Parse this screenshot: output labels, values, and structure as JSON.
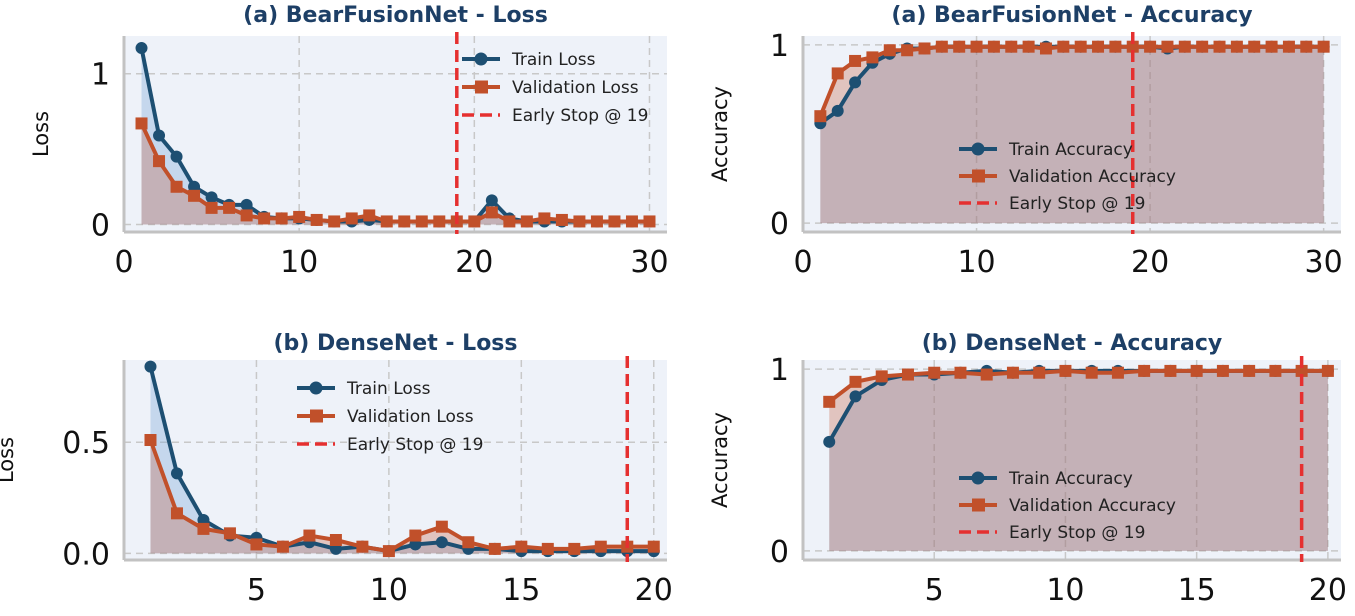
{
  "colors": {
    "train": "#1d4f72",
    "validation": "#c1502a",
    "early_stop": "#e53030",
    "plot_bg": "#eef2f9",
    "grid": "#c8c8c8",
    "title": "#1d3f66"
  },
  "chart_data": [
    {
      "type": "line",
      "title": "(a) BearFusionNet - Loss",
      "xlabel": "",
      "ylabel": "Loss",
      "xlim": [
        0,
        31
      ],
      "ylim": [
        -0.05,
        1.25
      ],
      "xticks": [
        0,
        10,
        20,
        30
      ],
      "yticks": [
        0,
        1
      ],
      "xtick_labels": [
        "0",
        "10",
        "20",
        "30"
      ],
      "ytick_labels": [
        "0",
        "1"
      ],
      "legend": "top-right",
      "x": [
        1,
        2,
        3,
        4,
        5,
        6,
        7,
        8,
        9,
        10,
        11,
        12,
        13,
        14,
        15,
        16,
        17,
        18,
        19,
        20,
        21,
        22,
        23,
        24,
        25,
        26,
        27,
        28,
        29,
        30
      ],
      "series": [
        {
          "name": "Train Loss",
          "values": [
            1.17,
            0.59,
            0.45,
            0.25,
            0.18,
            0.13,
            0.13,
            0.05,
            0.04,
            0.04,
            0.03,
            0.02,
            0.02,
            0.03,
            0.02,
            0.02,
            0.02,
            0.02,
            0.02,
            0.02,
            0.16,
            0.04,
            0.02,
            0.02,
            0.02,
            0.02,
            0.02,
            0.02,
            0.02,
            0.02
          ]
        },
        {
          "name": "Validation Loss",
          "values": [
            0.67,
            0.42,
            0.25,
            0.19,
            0.11,
            0.11,
            0.06,
            0.04,
            0.04,
            0.05,
            0.03,
            0.02,
            0.04,
            0.06,
            0.02,
            0.02,
            0.02,
            0.02,
            0.02,
            0.02,
            0.08,
            0.02,
            0.02,
            0.04,
            0.03,
            0.02,
            0.02,
            0.02,
            0.02,
            0.02
          ]
        }
      ],
      "early_stop": {
        "label": "Early Stop @ 19",
        "x": 19
      }
    },
    {
      "type": "line",
      "title": "(a) BearFusionNet - Accuracy",
      "xlabel": "",
      "ylabel": "Accuracy",
      "xlim": [
        0,
        31
      ],
      "ylim": [
        -0.05,
        1.05
      ],
      "xticks": [
        0,
        10,
        20,
        30
      ],
      "yticks": [
        0,
        1
      ],
      "xtick_labels": [
        "0",
        "10",
        "20",
        "30"
      ],
      "ytick_labels": [
        "0",
        "1"
      ],
      "legend": "lower-center",
      "x": [
        1,
        2,
        3,
        4,
        5,
        6,
        7,
        8,
        9,
        10,
        11,
        12,
        13,
        14,
        15,
        16,
        17,
        18,
        19,
        20,
        21,
        22,
        23,
        24,
        25,
        26,
        27,
        28,
        29,
        30
      ],
      "series": [
        {
          "name": "Train Accuracy",
          "values": [
            0.56,
            0.63,
            0.79,
            0.9,
            0.95,
            0.98,
            0.98,
            0.99,
            0.99,
            0.99,
            0.99,
            0.99,
            0.99,
            0.99,
            0.99,
            0.99,
            0.99,
            0.99,
            0.99,
            0.99,
            0.98,
            0.99,
            0.99,
            0.99,
            0.99,
            0.99,
            0.99,
            0.99,
            0.99,
            0.99
          ]
        },
        {
          "name": "Validation Accuracy",
          "values": [
            0.6,
            0.84,
            0.91,
            0.93,
            0.97,
            0.97,
            0.98,
            0.99,
            0.99,
            0.99,
            0.99,
            0.99,
            0.99,
            0.98,
            0.99,
            0.99,
            0.99,
            0.99,
            0.99,
            0.99,
            0.99,
            0.99,
            0.99,
            0.99,
            0.99,
            0.99,
            0.99,
            0.99,
            0.99,
            0.99
          ]
        }
      ],
      "early_stop": {
        "label": "Early Stop @ 19",
        "x": 19
      }
    },
    {
      "type": "line",
      "title": "(b) DenseNet - Loss",
      "xlabel": "",
      "ylabel": "Loss",
      "xlim": [
        0,
        20.5
      ],
      "ylim": [
        -0.03,
        0.87
      ],
      "xticks": [
        5,
        10,
        15,
        20
      ],
      "yticks": [
        0.0,
        0.5
      ],
      "xtick_labels": [
        "5",
        "10",
        "15",
        "20"
      ],
      "ytick_labels": [
        "0.0",
        "0.5"
      ],
      "legend": "top-center",
      "x": [
        1,
        2,
        3,
        4,
        5,
        6,
        7,
        8,
        9,
        10,
        11,
        12,
        13,
        14,
        15,
        16,
        17,
        18,
        19,
        20
      ],
      "series": [
        {
          "name": "Train Loss",
          "values": [
            0.84,
            0.36,
            0.15,
            0.08,
            0.07,
            0.03,
            0.05,
            0.02,
            0.03,
            0.01,
            0.04,
            0.05,
            0.02,
            0.02,
            0.01,
            0.01,
            0.01,
            0.01,
            0.01,
            0.01
          ]
        },
        {
          "name": "Validation Loss",
          "values": [
            0.51,
            0.18,
            0.11,
            0.09,
            0.04,
            0.03,
            0.08,
            0.06,
            0.03,
            0.01,
            0.08,
            0.12,
            0.05,
            0.02,
            0.03,
            0.02,
            0.02,
            0.03,
            0.03,
            0.03
          ]
        }
      ],
      "early_stop": {
        "label": "Early Stop @ 19",
        "x": 19
      }
    },
    {
      "type": "line",
      "title": "(b) DenseNet - Accuracy",
      "xlabel": "",
      "ylabel": "Accuracy",
      "xlim": [
        0,
        20.5
      ],
      "ylim": [
        -0.05,
        1.05
      ],
      "xticks": [
        5,
        10,
        15,
        20
      ],
      "yticks": [
        0,
        1
      ],
      "xtick_labels": [
        "5",
        "10",
        "15",
        "20"
      ],
      "ytick_labels": [
        "0",
        "1"
      ],
      "legend": "lower-center",
      "x": [
        1,
        2,
        3,
        4,
        5,
        6,
        7,
        8,
        9,
        10,
        11,
        12,
        13,
        14,
        15,
        16,
        17,
        18,
        19,
        20
      ],
      "series": [
        {
          "name": "Train Accuracy",
          "values": [
            0.6,
            0.85,
            0.94,
            0.97,
            0.97,
            0.98,
            0.99,
            0.98,
            0.99,
            0.99,
            0.99,
            0.99,
            0.99,
            0.99,
            0.99,
            0.99,
            0.99,
            0.99,
            0.99,
            0.99
          ]
        },
        {
          "name": "Validation Accuracy",
          "values": [
            0.82,
            0.93,
            0.96,
            0.97,
            0.98,
            0.98,
            0.97,
            0.98,
            0.98,
            0.99,
            0.98,
            0.98,
            0.99,
            0.99,
            0.99,
            0.99,
            0.99,
            0.99,
            0.99,
            0.99
          ]
        }
      ],
      "early_stop": {
        "label": "Early Stop @ 19",
        "x": 19
      }
    }
  ]
}
